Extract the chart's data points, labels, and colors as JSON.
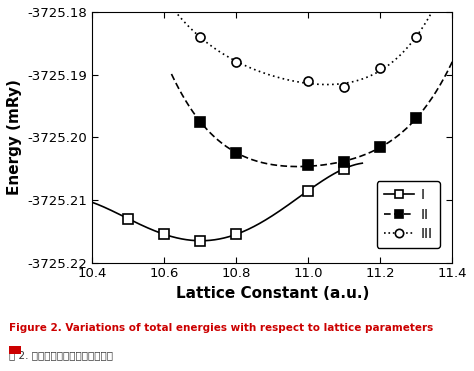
{
  "title": "",
  "xlabel": "Lattice Constant (a.u.)",
  "ylabel": "Energy (mRy)",
  "xlim": [
    10.4,
    11.4
  ],
  "ylim": [
    -3725.22,
    -3725.18
  ],
  "xticks": [
    10.4,
    10.6,
    10.8,
    11.0,
    11.2,
    11.4
  ],
  "yticks": [
    -3725.22,
    -3725.21,
    -3725.2,
    -3725.19,
    -3725.18
  ],
  "series_I_x": [
    10.5,
    10.6,
    10.7,
    10.8,
    11.0,
    11.1
  ],
  "series_I_y": [
    -3725.213,
    -3725.2155,
    -3725.2165,
    -3725.2155,
    -3725.2085,
    -3725.205
  ],
  "series_II_x": [
    10.7,
    10.8,
    11.0,
    11.1,
    11.2,
    11.3
  ],
  "series_II_y": [
    -3725.1975,
    -3725.2025,
    -3725.2045,
    -3725.204,
    -3725.2015,
    -3725.197
  ],
  "series_III_x": [
    10.7,
    10.8,
    11.0,
    11.1,
    11.2,
    11.3
  ],
  "series_III_y": [
    -3725.184,
    -3725.188,
    -3725.191,
    -3725.192,
    -3725.189,
    -3725.184
  ],
  "legend_labels": [
    "I",
    "II",
    "III"
  ],
  "caption_en": "Figure 2. Variations of total energies with respect to lattice parameters",
  "caption_cn": "图 2. 总能量随晶格常数的变化曲线",
  "background_color": "#ffffff",
  "line_color": "#000000",
  "figsize": [
    4.74,
    3.71
  ],
  "dpi": 100
}
